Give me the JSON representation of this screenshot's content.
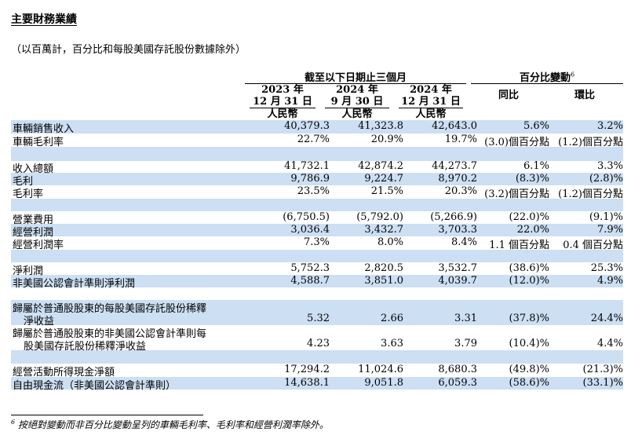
{
  "title": "主要財務業績",
  "subtitle": "（以百萬計，百分比和每股美國存託股份數據除外）",
  "header": {
    "period_group": "截至以下日期止三個月",
    "change_group": "百分比變動",
    "change_sup": "6",
    "columns": [
      {
        "line1": "2023 年",
        "line2": "12 月 31 日",
        "currency": "人民幣"
      },
      {
        "line1": "2024 年",
        "line2": "9 月 30 日",
        "currency": "人民幣"
      },
      {
        "line1": "2024 年",
        "line2": "12 月 31 日",
        "currency": "人民幣"
      }
    ],
    "yoy": "同比",
    "qoq": "環比"
  },
  "rows": [
    {
      "label": "車輛銷售收入",
      "v": [
        "40,379.3",
        "41,323.8",
        "42,643.0",
        "5.6%",
        "3.2%"
      ]
    },
    {
      "label": "車輛毛利率",
      "v": [
        "22.7%",
        "20.9%",
        "19.7%",
        "(3.0)個百分點",
        "(1.2)個百分點"
      ]
    },
    {
      "label": "收入總額",
      "v": [
        "41,732.1",
        "42,874.2",
        "44,273.7",
        "6.1%",
        "3.3%"
      ]
    },
    {
      "label": "毛利",
      "v": [
        "9,786.9",
        "9,224.7",
        "8,970.2",
        "(8.3)%",
        "(2.8)%"
      ]
    },
    {
      "label": "毛利率",
      "v": [
        "23.5%",
        "21.5%",
        "20.3%",
        "(3.2)個百分點",
        "(1.2)個百分點"
      ]
    },
    {
      "label": "營業費用",
      "v": [
        "(6,750.5)",
        "(5,792.0)",
        "(5,266.9)",
        "(22.0)%",
        "(9.1)%"
      ]
    },
    {
      "label": "經營利潤",
      "v": [
        "3,036.4",
        "3,432.7",
        "3,703.3",
        "22.0%",
        "7.9%"
      ]
    },
    {
      "label": "經營利潤率",
      "v": [
        "7.3%",
        "8.0%",
        "8.4%",
        "1.1 個百分點",
        "0.4 個百分點"
      ]
    },
    {
      "label": "淨利潤",
      "v": [
        "5,752.3",
        "2,820.5",
        "3,532.7",
        "(38.6)%",
        "25.3%"
      ]
    },
    {
      "label": "非美國公認會計準則淨利潤",
      "v": [
        "4,588.7",
        "3,851.0",
        "4,039.7",
        "(12.0)%",
        "4.9%"
      ]
    },
    {
      "label": "歸屬於普通股股東的每股美國存託股份稀釋",
      "label2": "淨收益",
      "v": [
        "5.32",
        "2.66",
        "3.31",
        "(37.8)%",
        "24.4%"
      ]
    },
    {
      "label": "歸屬於普通股股東的非美國公認會計準則每",
      "label2": "股美國存託股份稀釋淨收益",
      "v": [
        "4.23",
        "3.63",
        "3.79",
        "(10.4)%",
        "4.4%"
      ]
    },
    {
      "label": "經營活動所得現金淨額",
      "v": [
        "17,294.2",
        "11,024.6",
        "8,680.3",
        "(49.8)%",
        "(21.3)%"
      ]
    },
    {
      "label": "自由現金流（非美國公認會計準則）",
      "v": [
        "14,638.1",
        "9,051.8",
        "6,059.3",
        "(58.6)%",
        "(33.1)%"
      ]
    }
  ],
  "footnote": {
    "sup": "6",
    "text": "按絕對變動而非百分比變動呈列的車輛毛利率、毛利率和經營利潤率除外。"
  }
}
